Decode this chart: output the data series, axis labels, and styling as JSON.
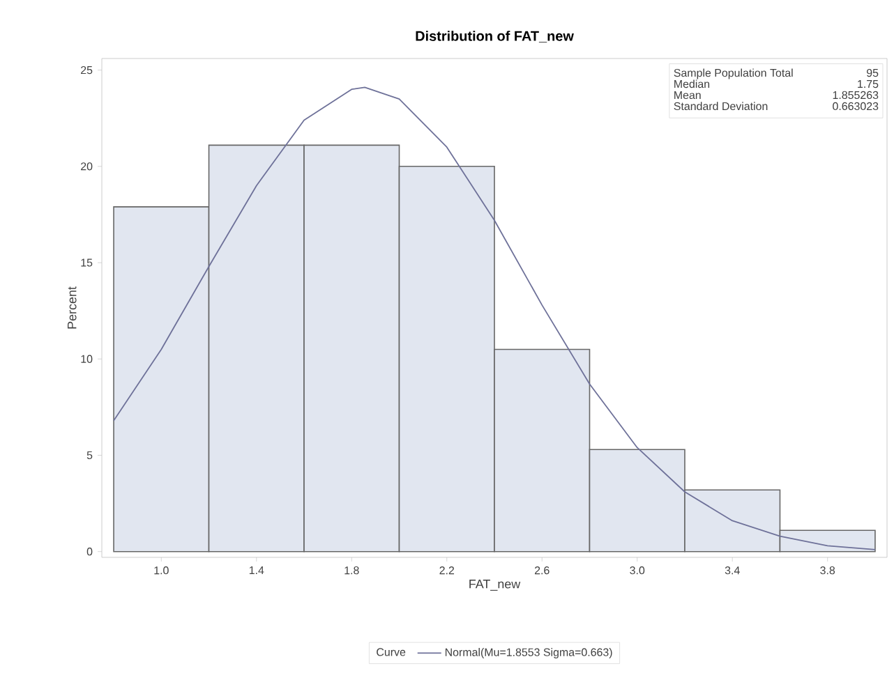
{
  "chart_data": {
    "type": "histogram",
    "title": "Distribution of FAT_new",
    "xlabel": "FAT_new",
    "ylabel": "Percent",
    "legend_title": "Curve",
    "bins": [
      0.8,
      1.2,
      1.6,
      2.0,
      2.4,
      2.8,
      3.2,
      3.6,
      4.0
    ],
    "values": [
      17.9,
      21.1,
      21.1,
      20.0,
      10.5,
      5.3,
      3.2,
      1.1
    ],
    "color": "#e1e6f0",
    "series": [
      {
        "name": "Normal(Mu=1.8553 Sigma=0.663)",
        "type": "line",
        "color": "#6e7199",
        "x": [
          0.8,
          1.0,
          1.2,
          1.4,
          1.6,
          1.8,
          1.8553,
          2.0,
          2.2,
          2.4,
          2.6,
          2.8,
          3.0,
          3.2,
          3.4,
          3.6,
          3.8,
          4.0
        ],
        "values": [
          6.8,
          10.5,
          14.8,
          19.0,
          22.4,
          24.0,
          24.1,
          23.5,
          21.0,
          17.2,
          12.8,
          8.7,
          5.4,
          3.1,
          1.6,
          0.8,
          0.3,
          0.1
        ]
      }
    ],
    "annotations": [
      "Sample Population Total",
      "95",
      "Median",
      "1.75",
      "Mean",
      "1.855263",
      "Standard Deviation",
      "0.663023"
    ],
    "xlim": [
      0.75,
      4.05
    ],
    "ylim": [
      -0.3,
      25.6
    ],
    "xticks": [
      {
        "value": 1.0,
        "label": "1.0"
      },
      1.4,
      1.8,
      2.2,
      2.6,
      {
        "value": 3.0,
        "label": "3.0"
      },
      3.4,
      3.8
    ],
    "yticks": [
      0,
      5,
      10,
      15,
      20,
      25
    ],
    "grid": false,
    "legend": "bottom",
    "marker": "none",
    "line_style": "solid"
  }
}
